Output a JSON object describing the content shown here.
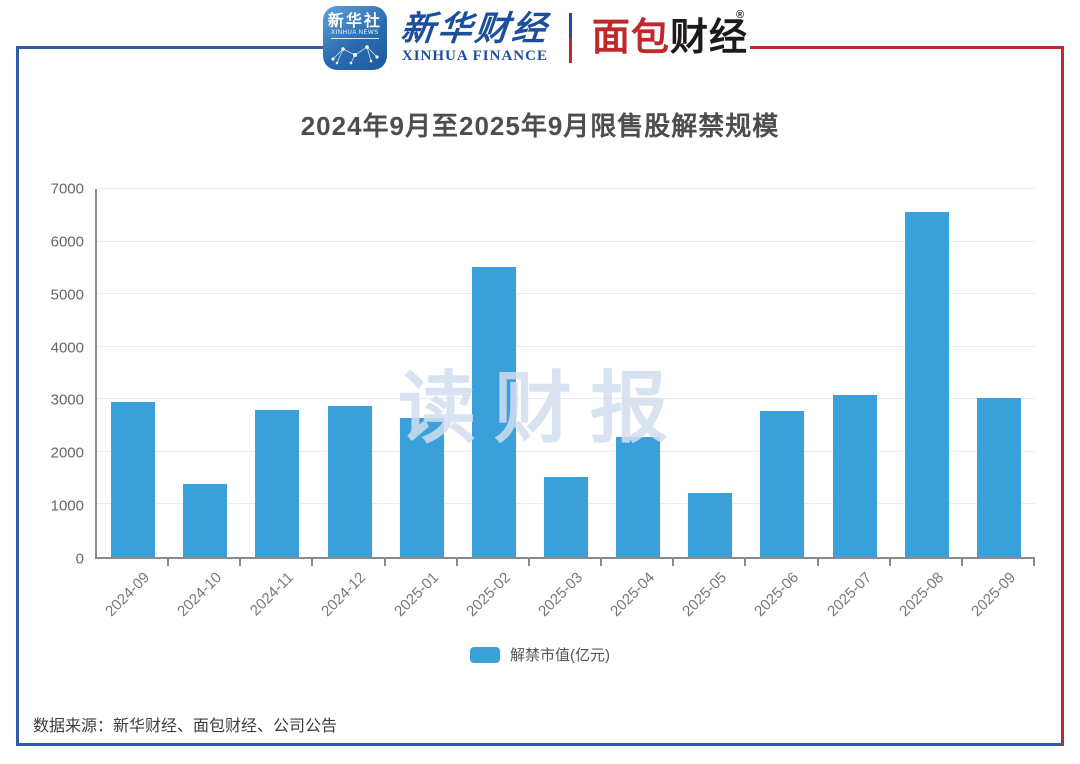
{
  "header": {
    "xinhua_icon": {
      "cn": "新华社",
      "en": "XINHUA NEWS"
    },
    "xinhua_finance": {
      "cn": "新华财经",
      "en": "XINHUA FINANCE"
    },
    "bread_finance": {
      "part_red": "面包",
      "part_black": "财经",
      "reg_mark": "®"
    }
  },
  "title": "2024年9月至2025年9月限售股解禁规模",
  "watermark": "读财报",
  "legend": {
    "label": "解禁市值(亿元)"
  },
  "footer": {
    "source": "数据来源：新华财经、面包财经、公司公告"
  },
  "colors": {
    "bar": "#3aa0da",
    "frame_blue": "#2f5ea6",
    "frame_red": "#c02a2e",
    "xinhua_blue": "#1b4e9b",
    "bread_red": "#c1272d",
    "bread_black": "#1e1a1a"
  },
  "chart_data": {
    "type": "bar",
    "title": "2024年9月至2025年9月限售股解禁规模",
    "series_name": "解禁市值(亿元)",
    "unit": "亿元",
    "categories": [
      "2024-09",
      "2024-10",
      "2024-11",
      "2024-12",
      "2025-01",
      "2025-02",
      "2025-03",
      "2025-04",
      "2025-05",
      "2025-06",
      "2025-07",
      "2025-08",
      "2025-09"
    ],
    "values": [
      2940,
      1390,
      2800,
      2880,
      2650,
      5520,
      1530,
      2280,
      1210,
      2780,
      3080,
      6570,
      3020
    ],
    "ylim": [
      0,
      7000
    ],
    "ytick_step": 1000,
    "grid": true,
    "legend_position": "bottom",
    "xlabel": "",
    "ylabel": ""
  }
}
